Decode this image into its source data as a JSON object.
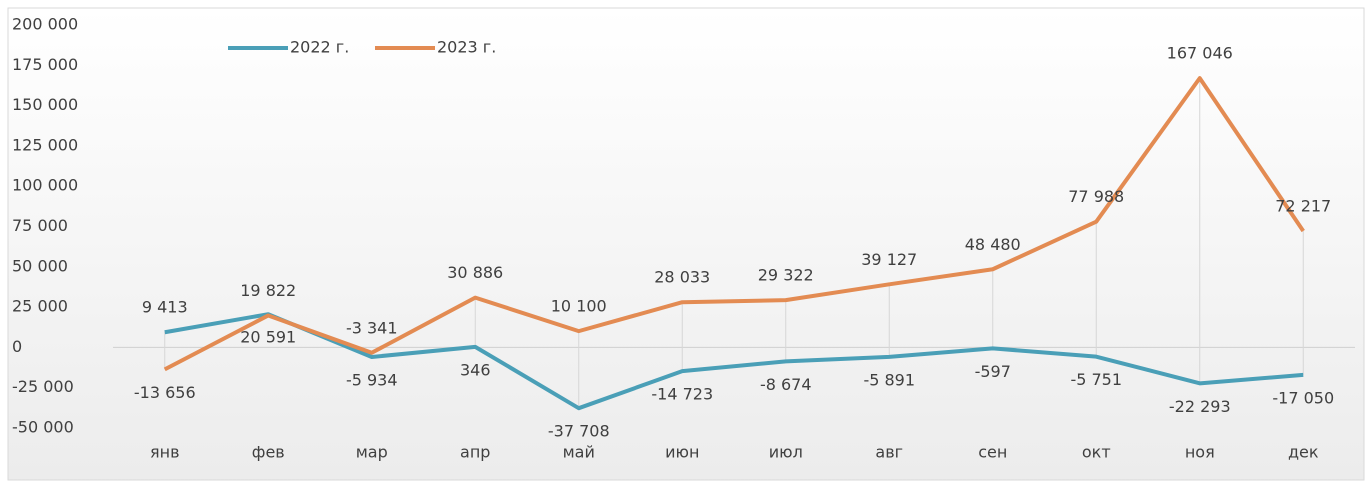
{
  "chart_data": {
    "type": "line",
    "categories": [
      "янв",
      "фев",
      "мар",
      "апр",
      "май",
      "июн",
      "июл",
      "авг",
      "сен",
      "окт",
      "ноя",
      "дек"
    ],
    "series": [
      {
        "name": "2022 г.",
        "color": "#4a9fb7",
        "values": [
          9413,
          20591,
          -5934,
          346,
          -37708,
          -14723,
          -8674,
          -5891,
          -597,
          -5751,
          -22293,
          -17050
        ],
        "value_labels": [
          "9 413",
          "20 591",
          "-5 934",
          "346",
          "-37 708",
          "-14 723",
          "-8 674",
          "-5 891",
          "-597",
          "-5 751",
          "-22 293",
          "-17 050"
        ]
      },
      {
        "name": "2023 г.",
        "color": "#e38b52",
        "values": [
          -13656,
          19822,
          -3341,
          30886,
          10100,
          28033,
          29322,
          39127,
          48480,
          77988,
          167046,
          72217
        ],
        "value_labels": [
          "-13 656",
          "19 822",
          "-3 341",
          "30 886",
          "10 100",
          "28 033",
          "29 322",
          "39 127",
          "48 480",
          "77 988",
          "167 046",
          "72 217"
        ]
      }
    ],
    "ylim": [
      -50000,
      200000
    ],
    "yticks": [
      {
        "value": -50000,
        "label": "-50 000"
      },
      {
        "value": -25000,
        "label": "-25 000"
      },
      0,
      {
        "value": 25000,
        "label": "25 000"
      },
      {
        "value": 50000,
        "label": "50 000"
      },
      {
        "value": 75000,
        "label": "75 000"
      },
      {
        "value": 100000,
        "label": "100 000"
      },
      {
        "value": 125000,
        "label": "125 000"
      },
      {
        "value": 150000,
        "label": "150 000"
      },
      {
        "value": 175000,
        "label": "175 000"
      },
      {
        "value": 200000,
        "label": "200 000"
      }
    ],
    "legend": "top-left",
    "high_low_lines": true
  }
}
